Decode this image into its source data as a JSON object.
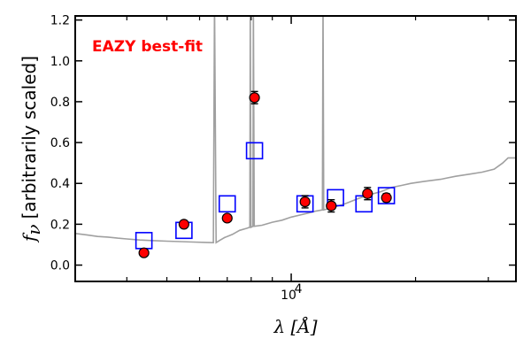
{
  "chart_data": {
    "type": "scatter",
    "xscale": "log",
    "xlim": [
      3000,
      35000
    ],
    "ylim": [
      -0.08,
      1.22
    ],
    "xlabel": "λ [Å]",
    "ylabel_math": "f",
    "ylabel_sub": "ν",
    "ylabel_text": "[arbitrarily scaled]",
    "annotation": {
      "text": "EAZY best-fit",
      "color": "#ff0000"
    },
    "yticks": [
      {
        "value": 0.0,
        "label": "0.0"
      },
      {
        "value": 0.2,
        "label": "0.2"
      },
      {
        "value": 0.4,
        "label": "0.4"
      },
      {
        "value": 0.6,
        "label": "0.6"
      },
      {
        "value": 0.8,
        "label": "0.8"
      },
      {
        "value": 1.0,
        "label": "1.0"
      },
      {
        "value": 1.2,
        "label": "1.2"
      }
    ],
    "xticks_major": [
      {
        "value": 10000,
        "label": "10",
        "exponent": "4"
      }
    ],
    "xticks_minor": [
      4000,
      5000,
      6000,
      7000,
      8000,
      9000,
      20000,
      30000
    ],
    "colors": {
      "observed_fill": "#ff0000",
      "observed_edge": "#000000",
      "model_box": "#0000ff",
      "template_line": "#a0a0a0"
    },
    "observed": [
      {
        "x": 4400,
        "y": 0.06,
        "err": 0.0
      },
      {
        "x": 5500,
        "y": 0.2,
        "err": 0.0
      },
      {
        "x": 7000,
        "y": 0.23,
        "err": 0.0
      },
      {
        "x": 8150,
        "y": 0.82,
        "err": 0.03
      },
      {
        "x": 10800,
        "y": 0.31,
        "err": 0.03
      },
      {
        "x": 12500,
        "y": 0.29,
        "err": 0.03
      },
      {
        "x": 15300,
        "y": 0.35,
        "err": 0.03
      },
      {
        "x": 17000,
        "y": 0.33,
        "err": 0.02
      }
    ],
    "model": [
      {
        "x": 4400,
        "y": 0.12
      },
      {
        "x": 5500,
        "y": 0.17
      },
      {
        "x": 7000,
        "y": 0.3
      },
      {
        "x": 8150,
        "y": 0.56
      },
      {
        "x": 10800,
        "y": 0.3
      },
      {
        "x": 12800,
        "y": 0.33
      },
      {
        "x": 15000,
        "y": 0.3
      },
      {
        "x": 17000,
        "y": 0.34
      }
    ],
    "template": [
      {
        "x": 3000,
        "y": 0.155
      },
      {
        "x": 3200,
        "y": 0.148
      },
      {
        "x": 3400,
        "y": 0.14
      },
      {
        "x": 3600,
        "y": 0.137
      },
      {
        "x": 3800,
        "y": 0.132
      },
      {
        "x": 4000,
        "y": 0.128
      },
      {
        "x": 4300,
        "y": 0.123
      },
      {
        "x": 4600,
        "y": 0.12
      },
      {
        "x": 5000,
        "y": 0.117
      },
      {
        "x": 5400,
        "y": 0.115
      },
      {
        "x": 5800,
        "y": 0.113
      },
      {
        "x": 6200,
        "y": 0.111
      },
      {
        "x": 6480,
        "y": 0.11
      },
      {
        "x": 6520,
        "y": 1.3
      },
      {
        "x": 6580,
        "y": 0.11
      },
      {
        "x": 6700,
        "y": 0.12
      },
      {
        "x": 6900,
        "y": 0.135
      },
      {
        "x": 7200,
        "y": 0.15
      },
      {
        "x": 7500,
        "y": 0.17
      },
      {
        "x": 7800,
        "y": 0.18
      },
      {
        "x": 7940,
        "y": 0.185
      },
      {
        "x": 7960,
        "y": 1.3
      },
      {
        "x": 7990,
        "y": 0.185
      },
      {
        "x": 8080,
        "y": 0.19
      },
      {
        "x": 8100,
        "y": 1.3
      },
      {
        "x": 8140,
        "y": 0.19
      },
      {
        "x": 8500,
        "y": 0.195
      },
      {
        "x": 9000,
        "y": 0.21
      },
      {
        "x": 9500,
        "y": 0.22
      },
      {
        "x": 10000,
        "y": 0.235
      },
      {
        "x": 10500,
        "y": 0.245
      },
      {
        "x": 11000,
        "y": 0.255
      },
      {
        "x": 11500,
        "y": 0.265
      },
      {
        "x": 11900,
        "y": 0.27
      },
      {
        "x": 11940,
        "y": 1.3
      },
      {
        "x": 11990,
        "y": 0.27
      },
      {
        "x": 12500,
        "y": 0.28
      },
      {
        "x": 13500,
        "y": 0.3
      },
      {
        "x": 14500,
        "y": 0.325
      },
      {
        "x": 15500,
        "y": 0.345
      },
      {
        "x": 16500,
        "y": 0.36
      },
      {
        "x": 17500,
        "y": 0.38
      },
      {
        "x": 18500,
        "y": 0.39
      },
      {
        "x": 19500,
        "y": 0.4
      },
      {
        "x": 21000,
        "y": 0.41
      },
      {
        "x": 23000,
        "y": 0.42
      },
      {
        "x": 25000,
        "y": 0.435
      },
      {
        "x": 27000,
        "y": 0.445
      },
      {
        "x": 29000,
        "y": 0.455
      },
      {
        "x": 31000,
        "y": 0.47
      },
      {
        "x": 32500,
        "y": 0.5
      },
      {
        "x": 33500,
        "y": 0.525
      },
      {
        "x": 35000,
        "y": 0.525
      }
    ]
  }
}
